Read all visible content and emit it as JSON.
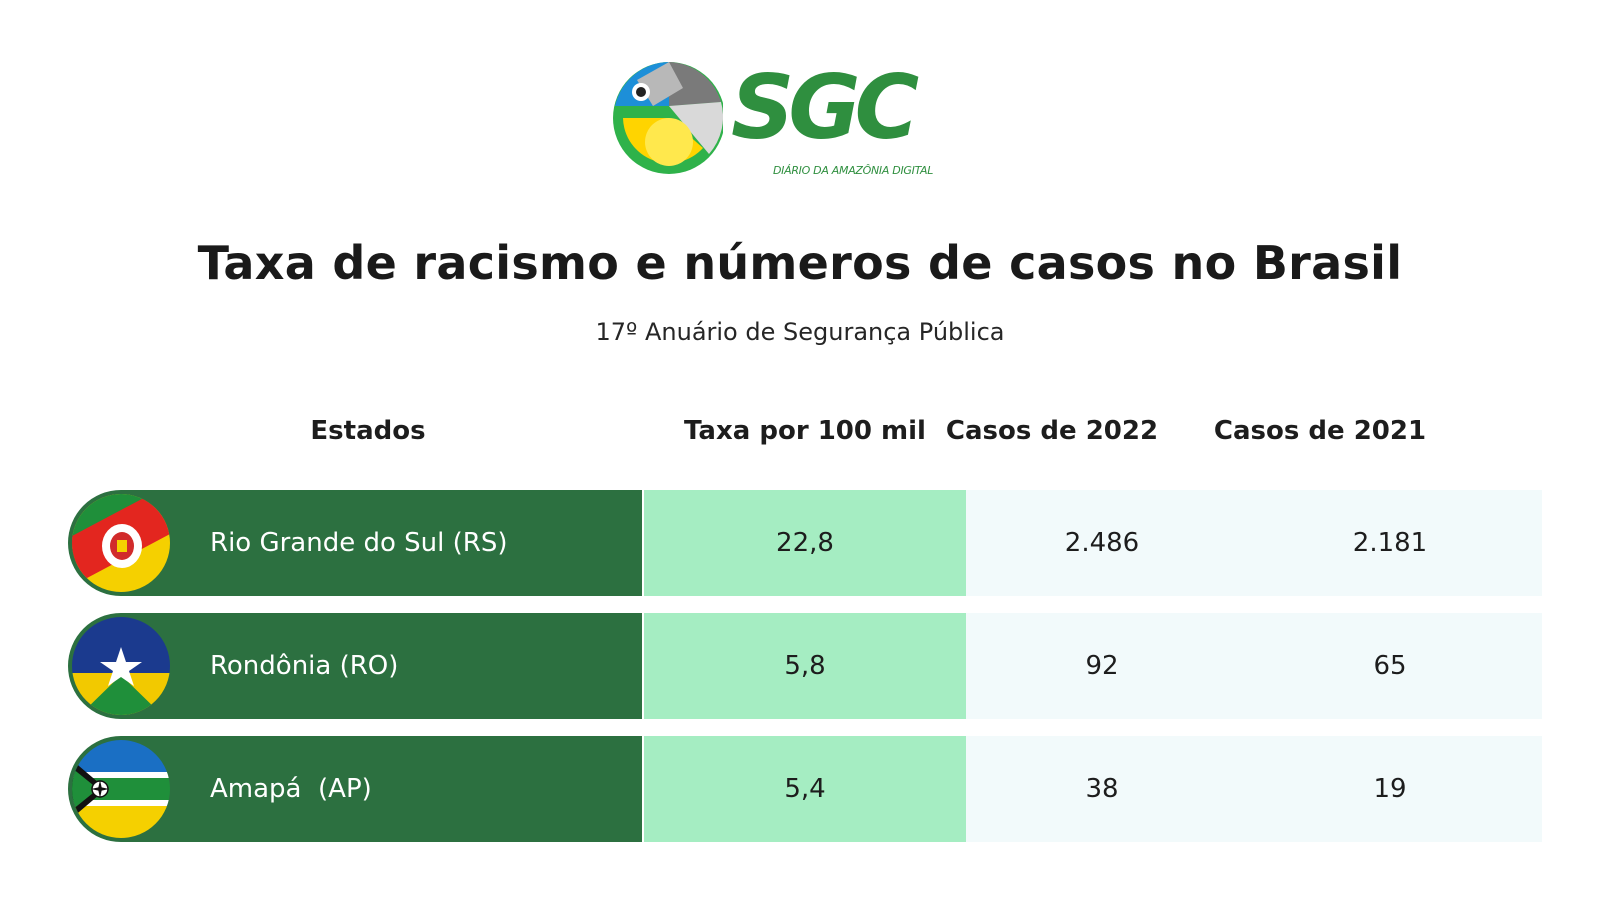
{
  "brand": {
    "name": "SGC",
    "tagline": "DIÁRIO DA AMAZÔNIA DIGITAL",
    "color": "#2f8f3f"
  },
  "chart_data": {
    "type": "table",
    "title": "Taxa de racismo e números de casos no Brasil",
    "subtitle": "17º Anuário de Segurança Pública",
    "columns": [
      "Estados",
      "Taxa por 100 mil",
      "Casos de 2022",
      "Casos de 2021"
    ],
    "rows": [
      {
        "state": "Rio Grande do Sul (RS)",
        "rate": "22,8",
        "cases_2022": "2.486",
        "cases_2021": "2.181",
        "flag": "rs-flag-icon"
      },
      {
        "state": "Rondônia (RO)",
        "rate": "5,8",
        "cases_2022": "92",
        "cases_2021": "65",
        "flag": "ro-flag-icon"
      },
      {
        "state": "Amapá  (AP)",
        "rate": "5,4",
        "cases_2022": "38",
        "cases_2021": "19",
        "flag": "ap-flag-icon"
      }
    ]
  },
  "colors": {
    "state_cell": "#2c7040",
    "rate_cell": "#a5edc2",
    "cases_cell": "#f2fafb"
  }
}
